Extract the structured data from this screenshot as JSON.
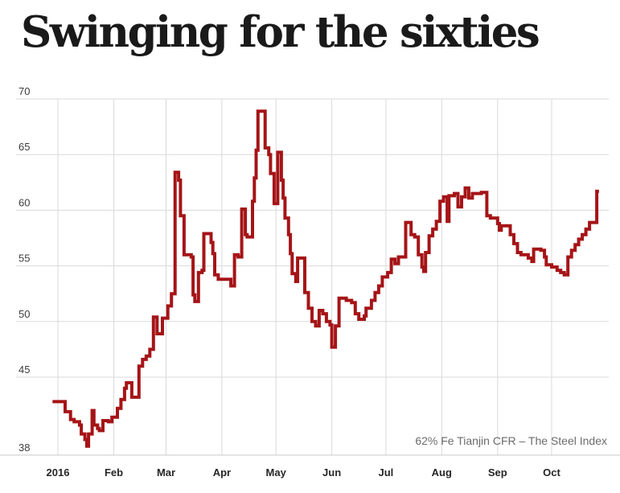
{
  "title": "Swinging for the sixties",
  "source_label": "62% Fe Tianjin CFR – The Steel Index",
  "colors": {
    "line": "#a51417",
    "grid": "#d9d9d9",
    "axis_line": "#c9c9c9",
    "y_tick_text": "#3d3d3d",
    "month_text": "#262626",
    "title_text": "#1a1a1a",
    "source_text": "#6b6b6b",
    "background": "#ffffff"
  },
  "chart_data": {
    "type": "line",
    "style": "step-after",
    "title": "Swinging for the sixties",
    "annotation": "62% Fe Tianjin CFR – The Steel Index",
    "legend_position": "none",
    "grid": true,
    "y_axis": {
      "range": [
        38,
        70
      ],
      "ticks": [
        70,
        65,
        60,
        55,
        50,
        45,
        38
      ]
    },
    "x_axis": {
      "months": [
        {
          "label": "2016",
          "date": "2016-01-01"
        },
        {
          "label": "Feb",
          "date": "2016-02-01"
        },
        {
          "label": "Mar",
          "date": "2016-03-01"
        },
        {
          "label": "Apr",
          "date": "2016-04-01"
        },
        {
          "label": "May",
          "date": "2016-05-01"
        },
        {
          "label": "Jun",
          "date": "2016-06-01"
        },
        {
          "label": "Jul",
          "date": "2016-07-01"
        },
        {
          "label": "Aug",
          "date": "2016-08-01"
        },
        {
          "label": "Sep",
          "date": "2016-09-01"
        },
        {
          "label": "Oct",
          "date": "2016-10-01"
        }
      ]
    },
    "series": [
      {
        "name": "62% Fe Tianjin CFR – The Steel Index",
        "color": "#a51417",
        "points": [
          [
            "2015-12-29",
            42.8
          ],
          [
            "2016-01-05",
            41.9
          ],
          [
            "2016-01-08",
            41.2
          ],
          [
            "2016-01-10",
            41.0
          ],
          [
            "2016-01-13",
            40.7
          ],
          [
            "2016-01-14",
            39.9
          ],
          [
            "2016-01-16",
            39.4
          ],
          [
            "2016-01-17",
            38.8
          ],
          [
            "2016-01-18",
            39.9
          ],
          [
            "2016-01-20",
            42.0
          ],
          [
            "2016-01-21",
            40.7
          ],
          [
            "2016-01-23",
            40.4
          ],
          [
            "2016-01-24",
            40.2
          ],
          [
            "2016-01-26",
            41.1
          ],
          [
            "2016-01-29",
            41.0
          ],
          [
            "2016-01-31",
            41.4
          ],
          [
            "2016-02-03",
            42.2
          ],
          [
            "2016-02-05",
            43.0
          ],
          [
            "2016-02-07",
            44.0
          ],
          [
            "2016-02-08",
            44.5
          ],
          [
            "2016-02-11",
            43.2
          ],
          [
            "2016-02-15",
            46.0
          ],
          [
            "2016-02-17",
            46.6
          ],
          [
            "2016-02-19",
            46.9
          ],
          [
            "2016-02-21",
            47.5
          ],
          [
            "2016-02-23",
            50.4
          ],
          [
            "2016-02-25",
            48.9
          ],
          [
            "2016-02-28",
            50.3
          ],
          [
            "2016-03-02",
            51.4
          ],
          [
            "2016-03-04",
            52.5
          ],
          [
            "2016-03-06",
            63.4
          ],
          [
            "2016-03-08",
            62.7
          ],
          [
            "2016-03-09",
            59.5
          ],
          [
            "2016-03-11",
            56.0
          ],
          [
            "2016-03-15",
            55.8
          ],
          [
            "2016-03-16",
            52.4
          ],
          [
            "2016-03-17",
            51.8
          ],
          [
            "2016-03-19",
            54.4
          ],
          [
            "2016-03-21",
            54.6
          ],
          [
            "2016-03-22",
            57.9
          ],
          [
            "2016-03-26",
            57.1
          ],
          [
            "2016-03-27",
            56.1
          ],
          [
            "2016-03-28",
            54.2
          ],
          [
            "2016-03-30",
            53.8
          ],
          [
            "2016-04-06",
            53.2
          ],
          [
            "2016-04-08",
            56.0
          ],
          [
            "2016-04-10",
            55.8
          ],
          [
            "2016-04-12",
            60.1
          ],
          [
            "2016-04-14",
            57.8
          ],
          [
            "2016-04-15",
            57.6
          ],
          [
            "2016-04-18",
            60.8
          ],
          [
            "2016-04-19",
            62.9
          ],
          [
            "2016-04-20",
            65.4
          ],
          [
            "2016-04-21",
            68.9
          ],
          [
            "2016-04-25",
            65.6
          ],
          [
            "2016-04-27",
            65.0
          ],
          [
            "2016-04-28",
            63.3
          ],
          [
            "2016-04-30",
            60.6
          ],
          [
            "2016-05-02",
            65.2
          ],
          [
            "2016-05-04",
            62.7
          ],
          [
            "2016-05-05",
            61.1
          ],
          [
            "2016-05-06",
            59.3
          ],
          [
            "2016-05-08",
            57.8
          ],
          [
            "2016-05-09",
            56.1
          ],
          [
            "2016-05-10",
            54.3
          ],
          [
            "2016-05-12",
            53.6
          ],
          [
            "2016-05-13",
            55.7
          ],
          [
            "2016-05-17",
            52.6
          ],
          [
            "2016-05-19",
            51.2
          ],
          [
            "2016-05-21",
            50.0
          ],
          [
            "2016-05-23",
            49.6
          ],
          [
            "2016-05-25",
            51.0
          ],
          [
            "2016-05-27",
            50.7
          ],
          [
            "2016-05-29",
            50.0
          ],
          [
            "2016-05-31",
            49.7
          ],
          [
            "2016-06-01",
            47.7
          ],
          [
            "2016-06-03",
            49.6
          ],
          [
            "2016-06-05",
            52.1
          ],
          [
            "2016-06-09",
            51.9
          ],
          [
            "2016-06-12",
            51.7
          ],
          [
            "2016-06-14",
            50.7
          ],
          [
            "2016-06-16",
            50.2
          ],
          [
            "2016-06-19",
            50.5
          ],
          [
            "2016-06-20",
            51.2
          ],
          [
            "2016-06-23",
            51.9
          ],
          [
            "2016-06-25",
            52.6
          ],
          [
            "2016-06-27",
            53.2
          ],
          [
            "2016-06-29",
            54.0
          ],
          [
            "2016-07-02",
            54.4
          ],
          [
            "2016-07-04",
            55.6
          ],
          [
            "2016-07-06",
            55.2
          ],
          [
            "2016-07-08",
            55.8
          ],
          [
            "2016-07-12",
            58.9
          ],
          [
            "2016-07-15",
            57.8
          ],
          [
            "2016-07-17",
            57.6
          ],
          [
            "2016-07-19",
            56.0
          ],
          [
            "2016-07-21",
            54.9
          ],
          [
            "2016-07-22",
            54.5
          ],
          [
            "2016-07-23",
            56.2
          ],
          [
            "2016-07-25",
            57.7
          ],
          [
            "2016-07-27",
            58.3
          ],
          [
            "2016-07-29",
            59.0
          ],
          [
            "2016-07-31",
            60.8
          ],
          [
            "2016-08-02",
            61.2
          ],
          [
            "2016-08-04",
            59.0
          ],
          [
            "2016-08-05",
            61.3
          ],
          [
            "2016-08-08",
            61.5
          ],
          [
            "2016-08-10",
            60.3
          ],
          [
            "2016-08-12",
            61.2
          ],
          [
            "2016-08-14",
            62.0
          ],
          [
            "2016-08-16",
            61.1
          ],
          [
            "2016-08-18",
            61.5
          ],
          [
            "2016-08-23",
            61.6
          ],
          [
            "2016-08-26",
            59.5
          ],
          [
            "2016-08-28",
            59.3
          ],
          [
            "2016-09-01",
            58.8
          ],
          [
            "2016-09-02",
            58.2
          ],
          [
            "2016-09-03",
            58.6
          ],
          [
            "2016-09-08",
            57.8
          ],
          [
            "2016-09-10",
            57.0
          ],
          [
            "2016-09-12",
            56.2
          ],
          [
            "2016-09-14",
            56.0
          ],
          [
            "2016-09-18",
            55.7
          ],
          [
            "2016-09-20",
            55.4
          ],
          [
            "2016-09-21",
            56.5
          ],
          [
            "2016-09-25",
            56.4
          ],
          [
            "2016-09-27",
            55.8
          ],
          [
            "2016-09-28",
            55.1
          ],
          [
            "2016-10-01",
            54.9
          ],
          [
            "2016-10-04",
            54.6
          ],
          [
            "2016-10-06",
            54.4
          ],
          [
            "2016-10-08",
            54.2
          ],
          [
            "2016-10-10",
            55.8
          ],
          [
            "2016-10-12",
            56.4
          ],
          [
            "2016-10-14",
            56.9
          ],
          [
            "2016-10-16",
            57.4
          ],
          [
            "2016-10-18",
            57.8
          ],
          [
            "2016-10-20",
            58.3
          ],
          [
            "2016-10-22",
            58.9
          ],
          [
            "2016-10-26",
            61.7
          ]
        ]
      }
    ]
  }
}
